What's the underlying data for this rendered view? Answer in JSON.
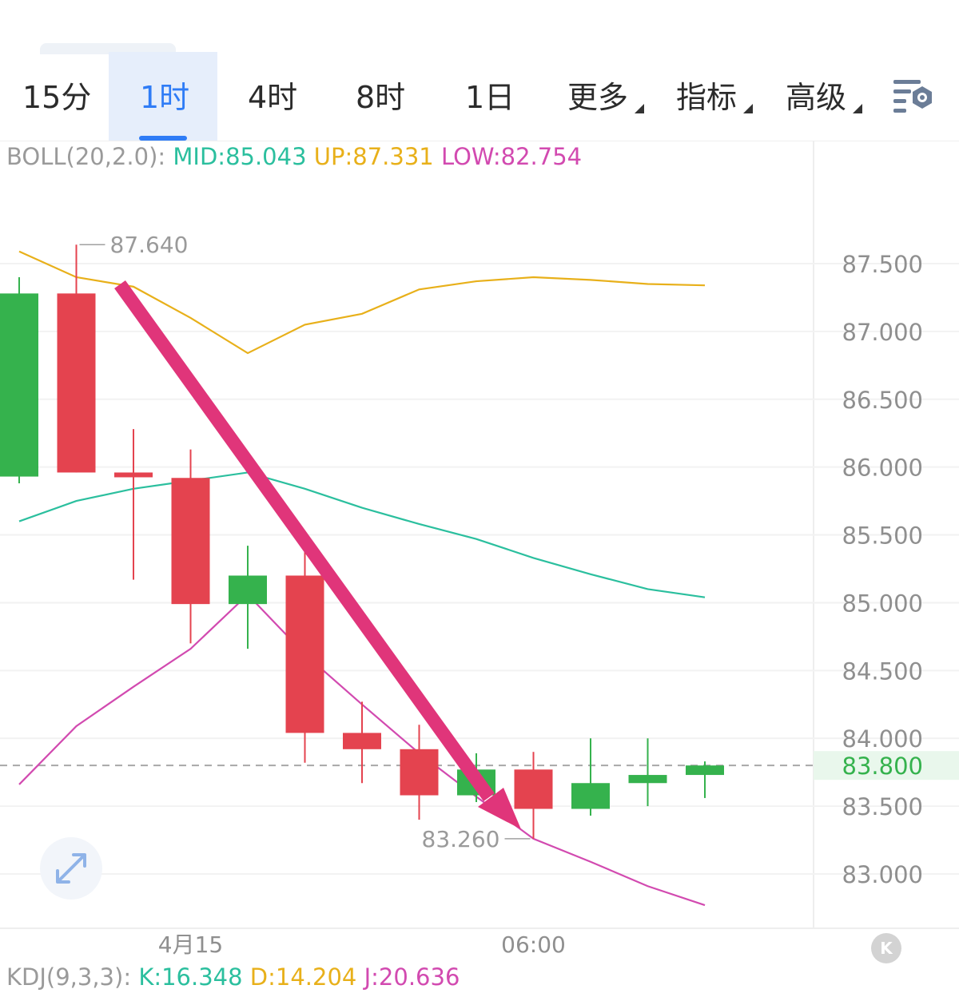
{
  "tabs": [
    {
      "label": "15分",
      "active": false
    },
    {
      "label": "1时",
      "active": true
    },
    {
      "label": "4时",
      "active": false
    },
    {
      "label": "8时",
      "active": false
    },
    {
      "label": "1日",
      "active": false
    },
    {
      "label": "更多",
      "active": false,
      "dropdown": true
    },
    {
      "label": "指标",
      "active": false,
      "dropdown": true
    },
    {
      "label": "高级",
      "active": false,
      "dropdown": true
    }
  ],
  "settings_icon": "chart-settings-icon",
  "boll_legend": {
    "name": "BOLL(20,2.0):",
    "mid": "MID:85.043",
    "up": "UP:87.331",
    "low": "LOW:82.754"
  },
  "kdj_legend": {
    "name": "KDJ(9,3,3):",
    "k": "K:16.348",
    "d": "D:14.204",
    "j": "J:20.636"
  },
  "colors": {
    "up_candle": "#35b24d",
    "down_candle": "#e4434f",
    "mid": "#2bbf9e",
    "up": "#e8b01a",
    "low": "#d24ab0",
    "arrow": "#e0357a",
    "active_tab": "#2f7cf6",
    "last_price_bg": "#e9f7ec",
    "last_price_text": "#35b24d"
  },
  "expand_icon": "expand-icon",
  "k_button_label": "K",
  "chart_data": {
    "type": "candlestick",
    "y_ticks": [
      "87.500",
      "87.000",
      "86.500",
      "86.000",
      "85.500",
      "85.000",
      "84.500",
      "84.000",
      "83.500",
      "83.000"
    ],
    "y_tick_values": [
      87.5,
      87.0,
      86.5,
      86.0,
      85.5,
      85.0,
      84.5,
      84.0,
      83.5,
      83.0
    ],
    "ylim": [
      82.6,
      87.95
    ],
    "x_ticks": [
      {
        "label": "4月15",
        "index": 3
      },
      {
        "label": "06:00",
        "index": 9
      }
    ],
    "last_price": "83.800",
    "last_price_value": 83.8,
    "max_label": "87.640",
    "max_value": 87.64,
    "max_index": 1,
    "min_label": "83.260",
    "min_value": 83.26,
    "min_index": 9,
    "candles": [
      {
        "open": 85.93,
        "close": 87.28,
        "high": 87.4,
        "low": 85.88,
        "dir": "up"
      },
      {
        "open": 87.28,
        "close": 85.96,
        "high": 87.64,
        "low": 85.96,
        "dir": "down"
      },
      {
        "open": 85.96,
        "close": 85.93,
        "high": 86.28,
        "low": 85.17,
        "dir": "down"
      },
      {
        "open": 85.92,
        "close": 84.99,
        "high": 86.13,
        "low": 84.7,
        "dir": "down"
      },
      {
        "open": 84.99,
        "close": 85.2,
        "high": 85.42,
        "low": 84.66,
        "dir": "up"
      },
      {
        "open": 85.2,
        "close": 84.04,
        "high": 85.38,
        "low": 83.82,
        "dir": "down"
      },
      {
        "open": 84.04,
        "close": 83.92,
        "high": 84.27,
        "low": 83.67,
        "dir": "down"
      },
      {
        "open": 83.92,
        "close": 83.58,
        "high": 84.1,
        "low": 83.4,
        "dir": "down"
      },
      {
        "open": 83.58,
        "close": 83.77,
        "high": 83.89,
        "low": 83.53,
        "dir": "up"
      },
      {
        "open": 83.77,
        "close": 83.48,
        "high": 83.9,
        "low": 83.26,
        "dir": "down"
      },
      {
        "open": 83.48,
        "close": 83.67,
        "high": 84.0,
        "low": 83.43,
        "dir": "up"
      },
      {
        "open": 83.67,
        "close": 83.73,
        "high": 84.0,
        "low": 83.5,
        "dir": "up"
      },
      {
        "open": 83.73,
        "close": 83.8,
        "high": 83.83,
        "low": 83.56,
        "dir": "up"
      }
    ],
    "series": [
      {
        "key": "up",
        "values": [
          87.59,
          87.4,
          87.33,
          87.1,
          86.84,
          87.05,
          87.13,
          87.31,
          87.37,
          87.4,
          87.38,
          87.35,
          87.34
        ]
      },
      {
        "key": "mid",
        "values": [
          85.6,
          85.75,
          85.84,
          85.9,
          85.96,
          85.84,
          85.7,
          85.58,
          85.47,
          85.33,
          85.21,
          85.1,
          85.04
        ]
      },
      {
        "key": "low",
        "values": [
          83.66,
          84.09,
          84.38,
          84.66,
          85.06,
          84.62,
          84.25,
          83.89,
          83.57,
          83.26,
          83.09,
          82.91,
          82.77
        ]
      }
    ]
  }
}
